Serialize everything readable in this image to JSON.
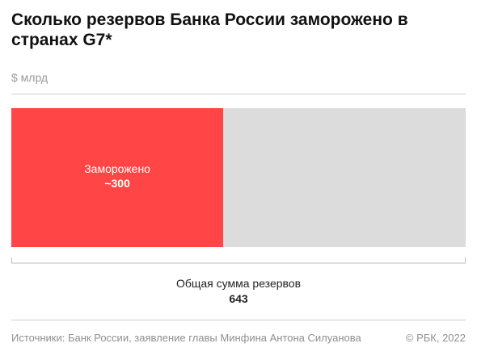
{
  "chart_data": {
    "type": "bar",
    "title": "Сколько резервов Банка России заморожено в странах G7*",
    "unit": "$ млрд",
    "total": 643,
    "total_label": "Общая сумма резервов",
    "total_value_label": "643",
    "segments": [
      {
        "name": "Заморожено",
        "value": 300,
        "value_label": "~300",
        "color": "#ff4545"
      },
      {
        "name": "",
        "value": 343,
        "value_label": "",
        "color": "#dcdcdc"
      }
    ]
  },
  "footer": {
    "source": "Источники: Банк России, заявление главы Минфина Антона Силуанова",
    "copyright": "© РБК, 2022"
  },
  "colors": {
    "frozen": "#ff4545",
    "remaining": "#dcdcdc",
    "bracket": "#bdbdbd"
  }
}
